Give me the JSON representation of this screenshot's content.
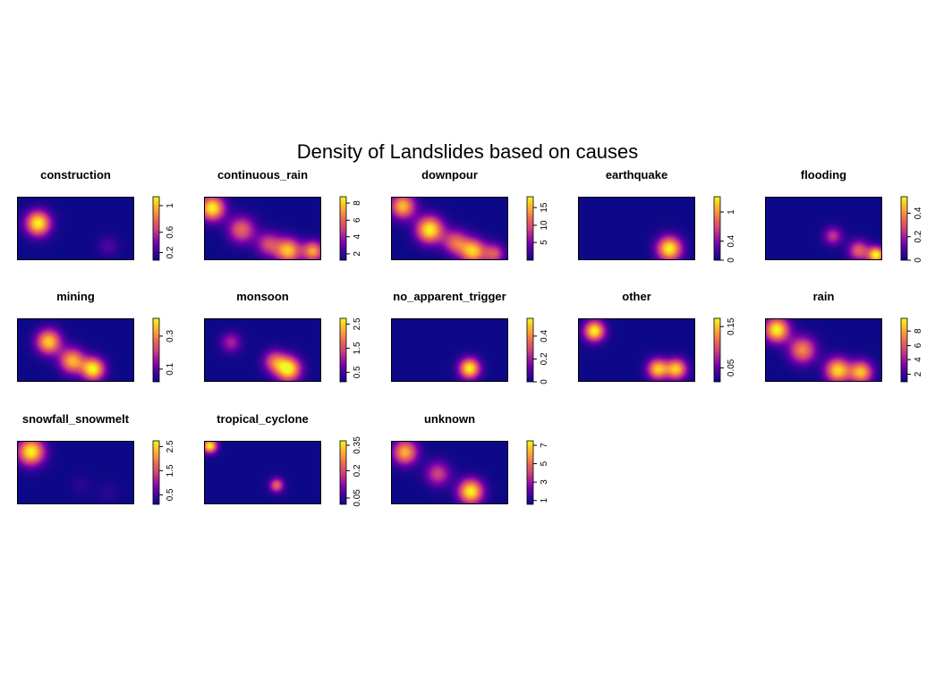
{
  "title": "Density of Landslides based on  causes",
  "colors": {
    "background": "#ffffff",
    "frame": "#000000",
    "palette": [
      "#0d0887",
      "#3a049a",
      "#7201a8",
      "#a41e9e",
      "#cc4778",
      "#e7635a",
      "#f89540",
      "#fdc328",
      "#f0f921"
    ]
  },
  "chart_data": [
    {
      "type": "heatmap",
      "title": "construction",
      "blobs": [
        {
          "x": 0.18,
          "y": 0.42,
          "amp": 1.0,
          "s": 0.12
        },
        {
          "x": 0.78,
          "y": 0.78,
          "amp": 0.18,
          "s": 0.1
        }
      ],
      "legend_ticks": [
        {
          "label": "0.2",
          "pos": 0.12
        },
        {
          "label": "0.6",
          "pos": 0.44
        },
        {
          "label": "1",
          "pos": 0.86
        }
      ]
    },
    {
      "type": "heatmap",
      "title": "continuous_rain",
      "blobs": [
        {
          "x": 0.07,
          "y": 0.18,
          "amp": 1.0,
          "s": 0.12
        },
        {
          "x": 0.32,
          "y": 0.52,
          "amp": 0.62,
          "s": 0.13
        },
        {
          "x": 0.55,
          "y": 0.75,
          "amp": 0.5,
          "s": 0.12
        },
        {
          "x": 0.72,
          "y": 0.85,
          "amp": 0.86,
          "s": 0.12
        },
        {
          "x": 0.93,
          "y": 0.86,
          "amp": 0.78,
          "s": 0.1
        }
      ],
      "legend_ticks": [
        {
          "label": "2",
          "pos": 0.1
        },
        {
          "label": "4",
          "pos": 0.37
        },
        {
          "label": "6",
          "pos": 0.63
        },
        {
          "label": "8",
          "pos": 0.9
        }
      ]
    },
    {
      "type": "heatmap",
      "title": "downpour",
      "blobs": [
        {
          "x": 0.1,
          "y": 0.15,
          "amp": 0.85,
          "s": 0.12
        },
        {
          "x": 0.33,
          "y": 0.52,
          "amp": 1.0,
          "s": 0.13
        },
        {
          "x": 0.55,
          "y": 0.72,
          "amp": 0.6,
          "s": 0.12
        },
        {
          "x": 0.7,
          "y": 0.86,
          "amp": 0.88,
          "s": 0.12
        },
        {
          "x": 0.88,
          "y": 0.9,
          "amp": 0.55,
          "s": 0.1
        }
      ],
      "legend_ticks": [
        {
          "label": "5",
          "pos": 0.28
        },
        {
          "label": "10",
          "pos": 0.55
        },
        {
          "label": "15",
          "pos": 0.83
        }
      ]
    },
    {
      "type": "heatmap",
      "title": "earthquake",
      "blobs": [
        {
          "x": 0.78,
          "y": 0.82,
          "amp": 1.0,
          "s": 0.12
        }
      ],
      "legend_ticks": [
        {
          "label": "0",
          "pos": 0.0
        },
        {
          "label": "0.4",
          "pos": 0.3
        },
        {
          "label": "1",
          "pos": 0.76
        }
      ]
    },
    {
      "type": "heatmap",
      "title": "flooding",
      "blobs": [
        {
          "x": 0.58,
          "y": 0.62,
          "amp": 0.45,
          "s": 0.09
        },
        {
          "x": 0.8,
          "y": 0.85,
          "amp": 0.6,
          "s": 0.1
        },
        {
          "x": 0.95,
          "y": 0.92,
          "amp": 1.0,
          "s": 0.08
        }
      ],
      "legend_ticks": [
        {
          "label": "0",
          "pos": 0.0
        },
        {
          "label": "0.2",
          "pos": 0.37
        },
        {
          "label": "0.4",
          "pos": 0.74
        }
      ]
    },
    {
      "type": "heatmap",
      "title": "mining",
      "blobs": [
        {
          "x": 0.27,
          "y": 0.37,
          "amp": 0.9,
          "s": 0.12
        },
        {
          "x": 0.47,
          "y": 0.67,
          "amp": 0.82,
          "s": 0.12
        },
        {
          "x": 0.65,
          "y": 0.8,
          "amp": 1.0,
          "s": 0.11
        }
      ],
      "legend_ticks": [
        {
          "label": "0.1",
          "pos": 0.2
        },
        {
          "label": "0.3",
          "pos": 0.72
        }
      ]
    },
    {
      "type": "heatmap",
      "title": "monsoon",
      "blobs": [
        {
          "x": 0.23,
          "y": 0.38,
          "amp": 0.38,
          "s": 0.1
        },
        {
          "x": 0.6,
          "y": 0.68,
          "amp": 0.55,
          "s": 0.11
        },
        {
          "x": 0.72,
          "y": 0.8,
          "amp": 1.0,
          "s": 0.12
        }
      ],
      "legend_ticks": [
        {
          "label": "0.5",
          "pos": 0.15
        },
        {
          "label": "1.5",
          "pos": 0.53
        },
        {
          "label": "2.5",
          "pos": 0.91
        }
      ]
    },
    {
      "type": "heatmap",
      "title": "no_apparent_trigger",
      "blobs": [
        {
          "x": 0.67,
          "y": 0.79,
          "amp": 1.0,
          "s": 0.1
        }
      ],
      "legend_ticks": [
        {
          "label": "0",
          "pos": 0.0
        },
        {
          "label": "0.2",
          "pos": 0.36
        },
        {
          "label": "0.4",
          "pos": 0.72
        }
      ]
    },
    {
      "type": "heatmap",
      "title": "other",
      "blobs": [
        {
          "x": 0.14,
          "y": 0.2,
          "amp": 1.0,
          "s": 0.1
        },
        {
          "x": 0.68,
          "y": 0.8,
          "amp": 0.88,
          "s": 0.1
        },
        {
          "x": 0.84,
          "y": 0.8,
          "amp": 0.88,
          "s": 0.1
        }
      ],
      "legend_ticks": [
        {
          "label": "0.05",
          "pos": 0.22
        },
        {
          "label": "0.15",
          "pos": 0.87
        }
      ]
    },
    {
      "type": "heatmap",
      "title": "rain",
      "blobs": [
        {
          "x": 0.1,
          "y": 0.18,
          "amp": 1.0,
          "s": 0.12
        },
        {
          "x": 0.32,
          "y": 0.5,
          "amp": 0.72,
          "s": 0.13
        },
        {
          "x": 0.62,
          "y": 0.82,
          "amp": 0.92,
          "s": 0.12
        },
        {
          "x": 0.82,
          "y": 0.85,
          "amp": 0.85,
          "s": 0.11
        }
      ],
      "legend_ticks": [
        {
          "label": "2",
          "pos": 0.12
        },
        {
          "label": "4",
          "pos": 0.35
        },
        {
          "label": "6",
          "pos": 0.57
        },
        {
          "label": "8",
          "pos": 0.8
        }
      ]
    },
    {
      "type": "heatmap",
      "title": "snowfall_snowmelt",
      "blobs": [
        {
          "x": 0.12,
          "y": 0.17,
          "amp": 1.0,
          "s": 0.13
        },
        {
          "x": 0.55,
          "y": 0.7,
          "amp": 0.08,
          "s": 0.1
        },
        {
          "x": 0.78,
          "y": 0.82,
          "amp": 0.08,
          "s": 0.1
        }
      ],
      "legend_ticks": [
        {
          "label": "0.5",
          "pos": 0.15
        },
        {
          "label": "1.5",
          "pos": 0.53
        },
        {
          "label": "2.5",
          "pos": 0.91
        }
      ]
    },
    {
      "type": "heatmap",
      "title": "tropical_cyclone",
      "blobs": [
        {
          "x": 0.05,
          "y": 0.08,
          "amp": 1.0,
          "s": 0.07
        },
        {
          "x": 0.62,
          "y": 0.7,
          "amp": 0.62,
          "s": 0.07
        }
      ],
      "legend_ticks": [
        {
          "label": "0.05",
          "pos": 0.1
        },
        {
          "label": "0.2",
          "pos": 0.53
        },
        {
          "label": "0.35",
          "pos": 0.93
        }
      ]
    },
    {
      "type": "heatmap",
      "title": "unknown",
      "blobs": [
        {
          "x": 0.12,
          "y": 0.18,
          "amp": 0.82,
          "s": 0.12
        },
        {
          "x": 0.4,
          "y": 0.52,
          "amp": 0.5,
          "s": 0.12
        },
        {
          "x": 0.68,
          "y": 0.8,
          "amp": 1.0,
          "s": 0.12
        }
      ],
      "legend_ticks": [
        {
          "label": "1",
          "pos": 0.06
        },
        {
          "label": "3",
          "pos": 0.35
        },
        {
          "label": "5",
          "pos": 0.64
        },
        {
          "label": "7",
          "pos": 0.93
        }
      ]
    }
  ]
}
